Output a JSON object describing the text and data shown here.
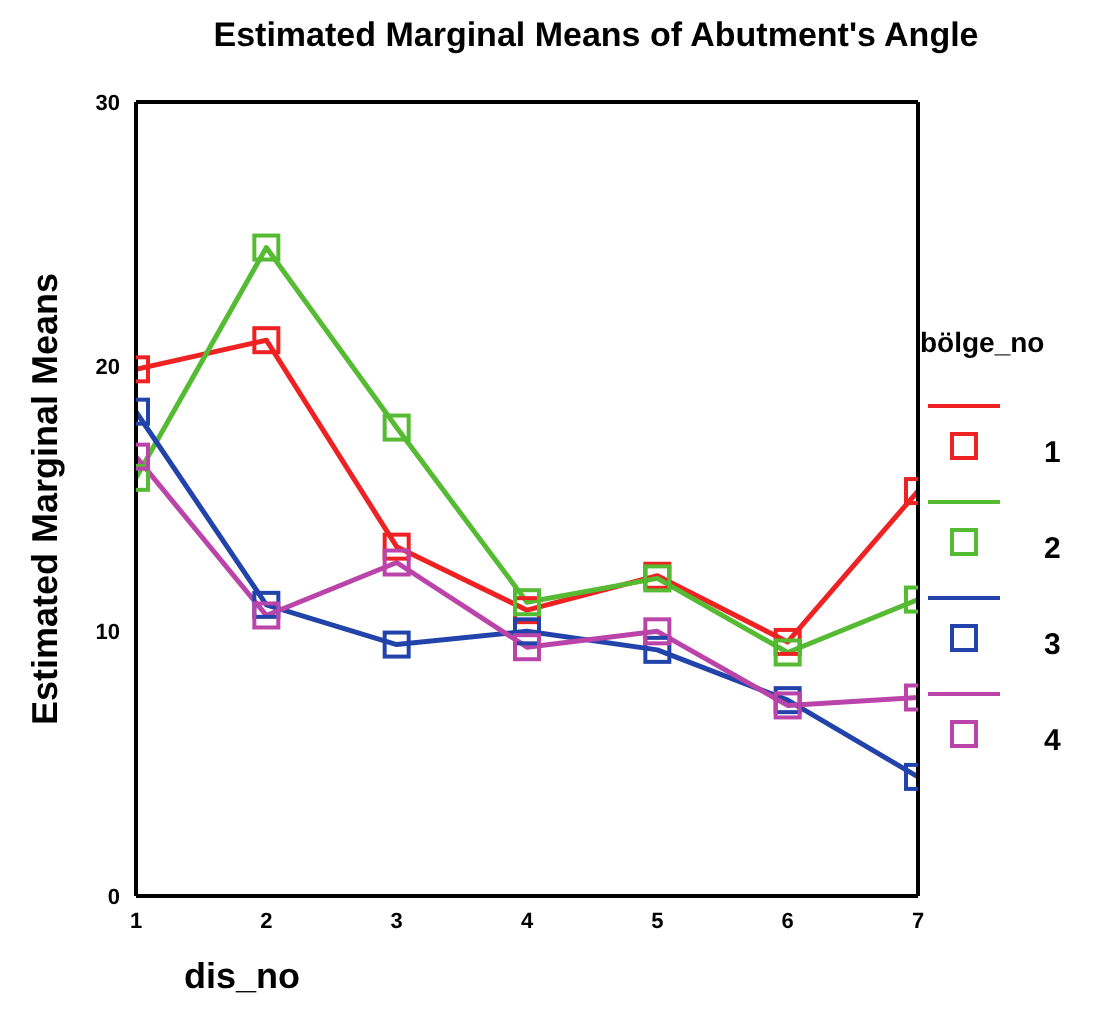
{
  "chart_data": {
    "type": "line",
    "title": "Estimated Marginal Means of Abutment's Angle",
    "xlabel": "dis_no",
    "ylabel": "Estimated Marginal Means",
    "legend_title": "bölge_no",
    "x": [
      1,
      2,
      3,
      4,
      5,
      6,
      7
    ],
    "xlim": [
      1,
      7
    ],
    "xticks": [
      1,
      2,
      3,
      4,
      5,
      6,
      7
    ],
    "ylim": [
      0,
      30
    ],
    "yticks": [
      0,
      10,
      20,
      30
    ],
    "series": [
      {
        "name": "1",
        "color": "#ee2222",
        "values": [
          19.9,
          21.0,
          13.2,
          10.8,
          12.1,
          9.6,
          15.3
        ]
      },
      {
        "name": "2",
        "color": "#55bb33",
        "values": [
          15.8,
          24.5,
          17.7,
          11.1,
          12.0,
          9.2,
          11.2
        ]
      },
      {
        "name": "3",
        "color": "#2244aa",
        "values": [
          18.3,
          11.0,
          9.5,
          10.0,
          9.3,
          7.4,
          4.5
        ]
      },
      {
        "name": "4",
        "color": "#bb44aa",
        "values": [
          16.6,
          10.6,
          12.6,
          9.4,
          10.0,
          7.2,
          7.5
        ]
      }
    ],
    "marker": "square",
    "line_style": "solid",
    "legend": "right"
  }
}
